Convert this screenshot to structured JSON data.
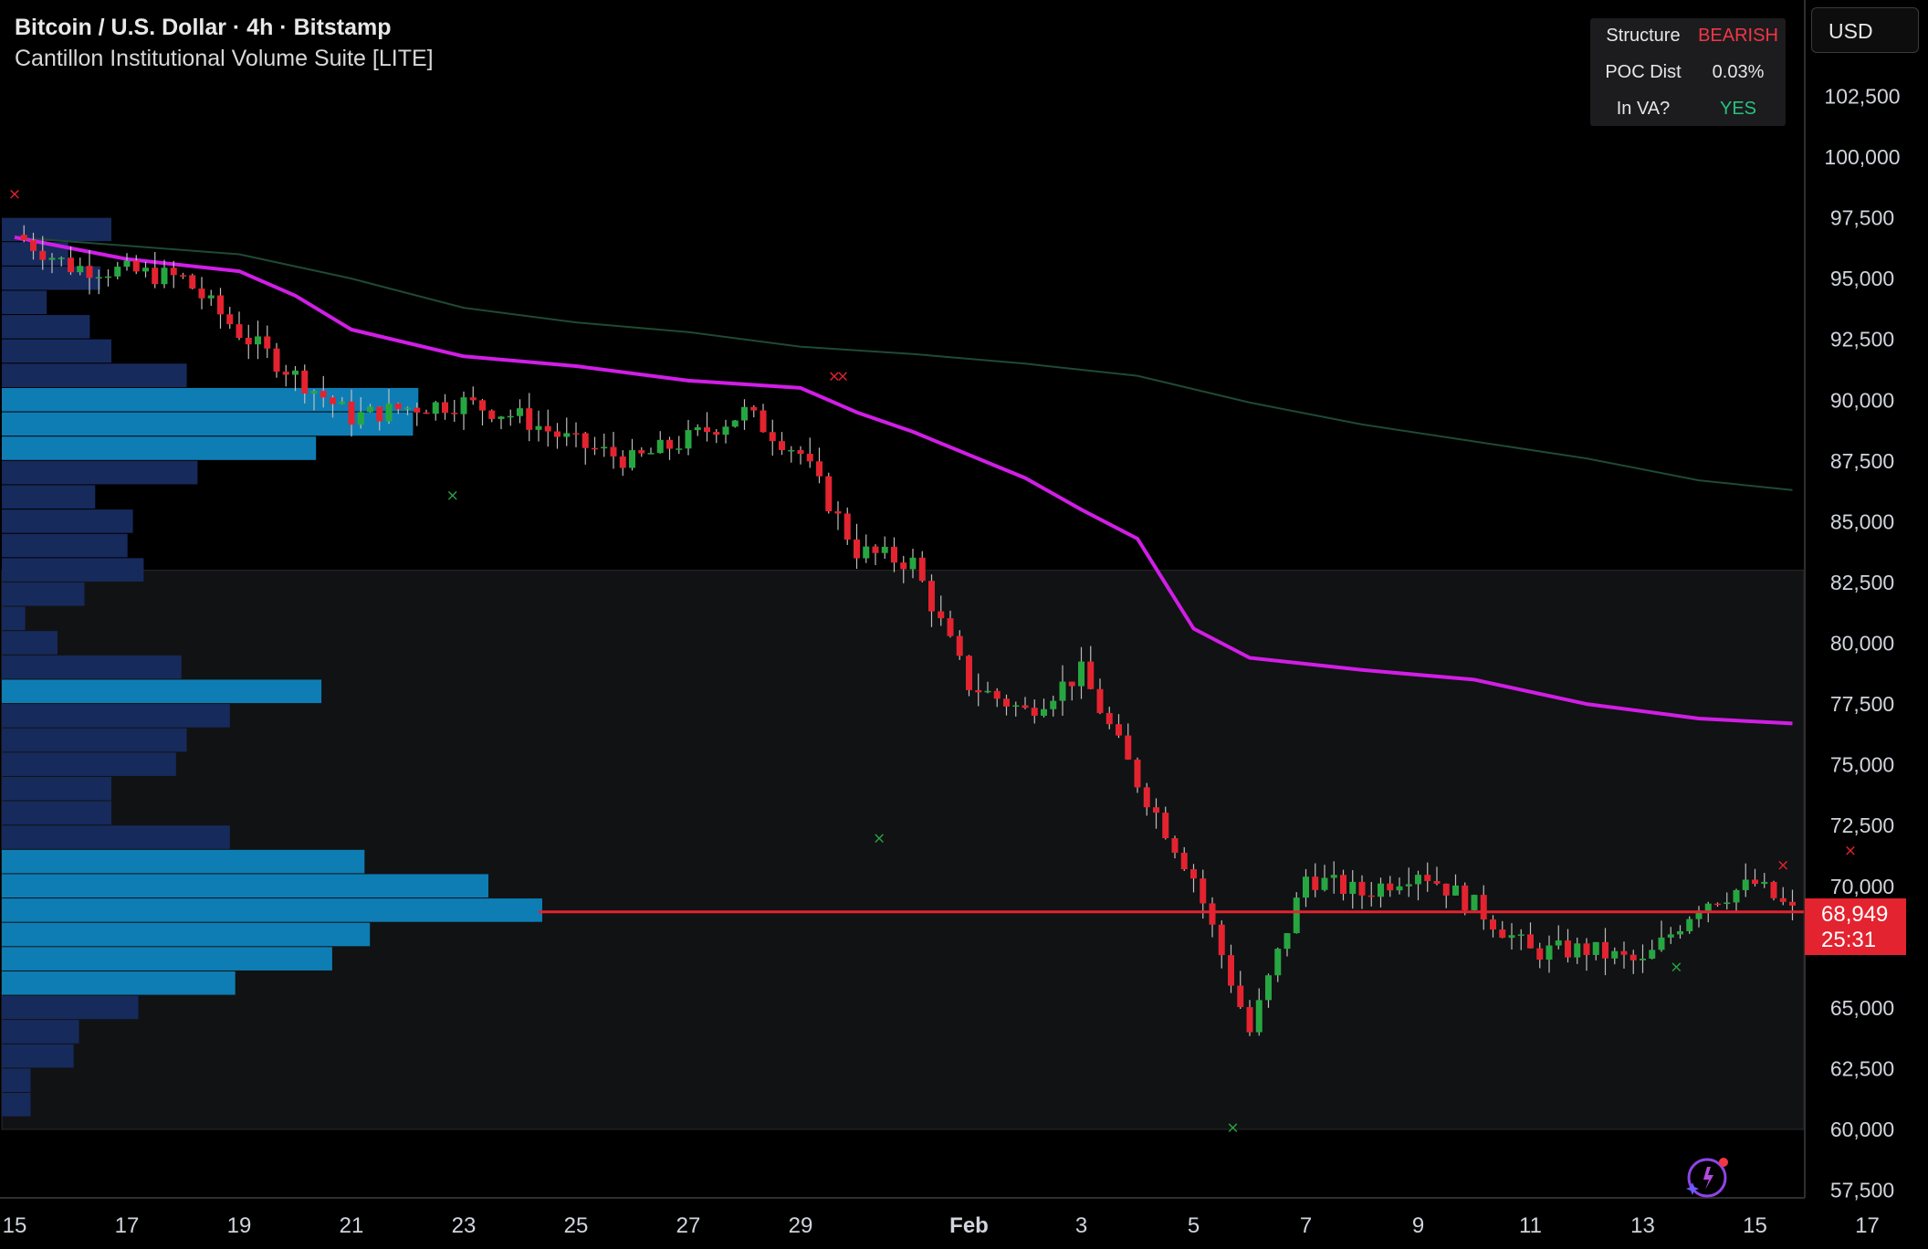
{
  "header": {
    "title": "Bitcoin / U.S. Dollar · 4h · Bitstamp",
    "indicator": "Cantillon Institutional Volume Suite [LITE]"
  },
  "stats_panel": {
    "rows": [
      {
        "label": "Structure",
        "value": "BEARISH",
        "color": "#f23645"
      },
      {
        "label": "POC Dist",
        "value": "0.03%",
        "color": "#e6e6e6"
      },
      {
        "label": "In VA?",
        "value": "YES",
        "color": "#26c281"
      }
    ]
  },
  "currency_button": "USD",
  "last_price": {
    "value": "68,949",
    "timer": "25:31"
  },
  "colors": {
    "up": "#26a641",
    "down": "#e3232f",
    "magenta": "#d11ee6",
    "profile_dark": "#172a5c",
    "profile_light": "#0e7db4",
    "price_line": "#e3232f",
    "ema": "#1f4a35"
  },
  "chart_data": {
    "type": "candlestick",
    "title": "Bitcoin / U.S. Dollar · 4h · Bitstamp",
    "y_axis_ticks": [
      "102,500",
      "100,000",
      "97,500",
      "95,000",
      "92,500",
      "90,000",
      "87,500",
      "85,000",
      "82,500",
      "80,000",
      "77,500",
      "75,000",
      "72,500",
      "70,000",
      "65,000",
      "62,500",
      "60,000",
      "57,500"
    ],
    "x_axis_ticks": [
      "15",
      "17",
      "19",
      "21",
      "23",
      "25",
      "27",
      "29",
      "Feb",
      "3",
      "5",
      "7",
      "9",
      "11",
      "13",
      "15",
      "17"
    ],
    "ylim": [
      57500,
      103000
    ],
    "value_area": {
      "high": 83000,
      "low": 60000
    },
    "poc_price": 68949,
    "close_points": [
      {
        "x": "Jan 15",
        "y": 96800
      },
      {
        "x": "Jan 16",
        "y": 95500
      },
      {
        "x": "Jan 17",
        "y": 95300
      },
      {
        "x": "Jan 18",
        "y": 95000
      },
      {
        "x": "Jan 19",
        "y": 92800
      },
      {
        "x": "Jan 20",
        "y": 91000
      },
      {
        "x": "Jan 21",
        "y": 89300
      },
      {
        "x": "Jan 22",
        "y": 89700
      },
      {
        "x": "Jan 23",
        "y": 89900
      },
      {
        "x": "Jan 24",
        "y": 89300
      },
      {
        "x": "Jan 25",
        "y": 88200
      },
      {
        "x": "Jan 26",
        "y": 87500
      },
      {
        "x": "Jan 27",
        "y": 88400
      },
      {
        "x": "Jan 28",
        "y": 89500
      },
      {
        "x": "Jan 29",
        "y": 87800
      },
      {
        "x": "Jan 30",
        "y": 83800
      },
      {
        "x": "Jan 31",
        "y": 83300
      },
      {
        "x": "Feb 1",
        "y": 78300
      },
      {
        "x": "Feb 2",
        "y": 77200
      },
      {
        "x": "Feb 3",
        "y": 78800
      },
      {
        "x": "Feb 4",
        "y": 74300
      },
      {
        "x": "Feb 5",
        "y": 70400
      },
      {
        "x": "Feb 6",
        "y": 64000
      },
      {
        "x": "Feb 7",
        "y": 70400
      },
      {
        "x": "Feb 8",
        "y": 69700
      },
      {
        "x": "Feb 9",
        "y": 70700
      },
      {
        "x": "Feb 10",
        "y": 69200
      },
      {
        "x": "Feb 11",
        "y": 67300
      },
      {
        "x": "Feb 12",
        "y": 67400
      },
      {
        "x": "Feb 13",
        "y": 66800
      },
      {
        "x": "Feb 14",
        "y": 69300
      },
      {
        "x": "Feb 15",
        "y": 70100
      },
      {
        "x": "Feb 15 16:00",
        "y": 68949
      }
    ],
    "magenta_line": [
      {
        "x": "Jan 15",
        "y": 96700
      },
      {
        "x": "Jan 17",
        "y": 95800
      },
      {
        "x": "Jan 19",
        "y": 95300
      },
      {
        "x": "Jan 20",
        "y": 94300
      },
      {
        "x": "Jan 21",
        "y": 92900
      },
      {
        "x": "Jan 23",
        "y": 91800
      },
      {
        "x": "Jan 25",
        "y": 91400
      },
      {
        "x": "Jan 27",
        "y": 90800
      },
      {
        "x": "Jan 29",
        "y": 90500
      },
      {
        "x": "Jan 30",
        "y": 89500
      },
      {
        "x": "Jan 31",
        "y": 88700
      },
      {
        "x": "Feb 2",
        "y": 86800
      },
      {
        "x": "Feb 3",
        "y": 85500
      },
      {
        "x": "Feb 4",
        "y": 84300
      },
      {
        "x": "Feb 5",
        "y": 80600
      },
      {
        "x": "Feb 6",
        "y": 79400
      },
      {
        "x": "Feb 8",
        "y": 78900
      },
      {
        "x": "Feb 10",
        "y": 78500
      },
      {
        "x": "Feb 12",
        "y": 77500
      },
      {
        "x": "Feb 14",
        "y": 76900
      },
      {
        "x": "Feb 15 16:00",
        "y": 76700
      }
    ],
    "ema_line": [
      {
        "x": "Jan 15",
        "y": 96700
      },
      {
        "x": "Jan 19",
        "y": 96000
      },
      {
        "x": "Jan 21",
        "y": 95000
      },
      {
        "x": "Jan 23",
        "y": 93800
      },
      {
        "x": "Jan 25",
        "y": 93200
      },
      {
        "x": "Jan 27",
        "y": 92800
      },
      {
        "x": "Jan 29",
        "y": 92200
      },
      {
        "x": "Jan 31",
        "y": 91900
      },
      {
        "x": "Feb 2",
        "y": 91500
      },
      {
        "x": "Feb 4",
        "y": 91000
      },
      {
        "x": "Feb 6",
        "y": 89900
      },
      {
        "x": "Feb 8",
        "y": 89000
      },
      {
        "x": "Feb 10",
        "y": 88300
      },
      {
        "x": "Feb 12",
        "y": 87600
      },
      {
        "x": "Feb 14",
        "y": 86700
      },
      {
        "x": "Feb 15 16:00",
        "y": 86300
      }
    ],
    "volume_profile_levels": [
      {
        "price": 97000,
        "volume": 0.2
      },
      {
        "price": 96000,
        "volume": 0.12
      },
      {
        "price": 95000,
        "volume": 0.18
      },
      {
        "price": 94000,
        "volume": 0.08
      },
      {
        "price": 93000,
        "volume": 0.16
      },
      {
        "price": 92000,
        "volume": 0.2
      },
      {
        "price": 91000,
        "volume": 0.34
      },
      {
        "price": 90000,
        "volume": 0.77
      },
      {
        "price": 89000,
        "volume": 0.76
      },
      {
        "price": 88000,
        "volume": 0.58
      },
      {
        "price": 87000,
        "volume": 0.36
      },
      {
        "price": 86000,
        "volume": 0.17
      },
      {
        "price": 85000,
        "volume": 0.24
      },
      {
        "price": 84000,
        "volume": 0.23
      },
      {
        "price": 83000,
        "volume": 0.26
      },
      {
        "price": 82000,
        "volume": 0.15
      },
      {
        "price": 81000,
        "volume": 0.04
      },
      {
        "price": 80000,
        "volume": 0.1
      },
      {
        "price": 79000,
        "volume": 0.33
      },
      {
        "price": 78000,
        "volume": 0.59
      },
      {
        "price": 77000,
        "volume": 0.42
      },
      {
        "price": 76000,
        "volume": 0.34
      },
      {
        "price": 75000,
        "volume": 0.32
      },
      {
        "price": 74000,
        "volume": 0.2
      },
      {
        "price": 73000,
        "volume": 0.2
      },
      {
        "price": 72000,
        "volume": 0.42
      },
      {
        "price": 71000,
        "volume": 0.67
      },
      {
        "price": 70000,
        "volume": 0.9
      },
      {
        "price": 69000,
        "volume": 1.0
      },
      {
        "price": 68000,
        "volume": 0.68
      },
      {
        "price": 67000,
        "volume": 0.61
      },
      {
        "price": 66000,
        "volume": 0.43
      },
      {
        "price": 65000,
        "volume": 0.25
      },
      {
        "price": 64000,
        "volume": 0.14
      },
      {
        "price": 63000,
        "volume": 0.13
      },
      {
        "price": 62000,
        "volume": 0.05
      },
      {
        "price": 61000,
        "volume": 0.05
      }
    ]
  }
}
